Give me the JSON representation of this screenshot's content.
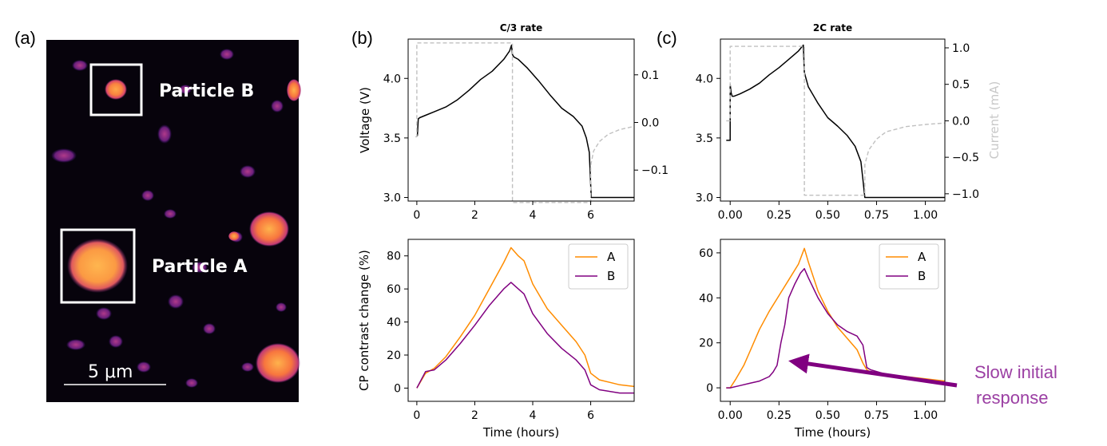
{
  "figure": {
    "panel_labels": [
      "(a)",
      "(b)",
      "(c)"
    ],
    "image": {
      "particle_a_label": "Particle A",
      "particle_b_label": "Particle B",
      "scalebar_label": "5 μm",
      "colormap": [
        "#000004",
        "#3b0f70",
        "#8c2981",
        "#de4968",
        "#fe9f6d",
        "#fcfdbf"
      ]
    },
    "annotation": {
      "text": "Slow initial\nresponse",
      "color": "#9b3fa3"
    }
  },
  "chart_data": [
    {
      "id": "b_top",
      "type": "line",
      "title": "C/3 rate",
      "xlabel": "",
      "ylabel": "Voltage (V)",
      "xlim": [
        -0.3,
        7.5
      ],
      "ylim": [
        2.97,
        4.33
      ],
      "xticks": [
        0,
        2,
        4,
        6
      ],
      "yticks": [
        3.0,
        3.5,
        4.0
      ],
      "y2lim": [
        -0.165,
        0.175
      ],
      "y2ticks": [
        -0.1,
        0.0,
        0.1
      ],
      "y2label": "",
      "series": [
        {
          "color": "#000000",
          "dash": false,
          "axis": "left",
          "x": [
            0,
            0.02,
            0.05,
            0.1,
            0.3,
            0.6,
            1.0,
            1.4,
            1.8,
            2.2,
            2.6,
            3.0,
            3.2,
            3.27,
            3.3,
            3.35,
            3.5,
            3.8,
            4.2,
            4.6,
            5.0,
            5.4,
            5.7,
            5.85,
            5.95,
            6.0,
            6.02,
            6.05,
            6.3,
            7.0,
            7.5
          ],
          "y": [
            3.52,
            3.52,
            3.66,
            3.67,
            3.69,
            3.72,
            3.76,
            3.82,
            3.9,
            3.99,
            4.06,
            4.16,
            4.23,
            4.28,
            4.2,
            4.18,
            4.16,
            4.09,
            3.98,
            3.86,
            3.75,
            3.68,
            3.6,
            3.5,
            3.38,
            3.1,
            3.0,
            3.0,
            3.0,
            3.0,
            3.0
          ]
        },
        {
          "color": "#c0c0c0",
          "dash": true,
          "axis": "right",
          "x": [
            -0.05,
            0,
            0,
            0.05,
            3.3,
            3.3,
            6.0,
            6.0,
            6.1,
            6.3,
            6.6,
            7.0,
            7.5
          ],
          "y": [
            -0.03,
            -0.03,
            0.167,
            0.167,
            0.167,
            -0.168,
            -0.168,
            -0.09,
            -0.06,
            -0.04,
            -0.025,
            -0.015,
            -0.008
          ]
        }
      ]
    },
    {
      "id": "c_top",
      "type": "line",
      "title": "2C rate",
      "xlabel": "",
      "ylabel": "",
      "xlim": [
        -0.05,
        1.1
      ],
      "ylim": [
        2.97,
        4.33
      ],
      "xticks": [
        0.0,
        0.25,
        0.5,
        0.75,
        1.0
      ],
      "xticklabels": [
        "0.00",
        "0.25",
        "0.50",
        "0.75",
        "1.00"
      ],
      "yticks": [
        3.0,
        3.5,
        4.0
      ],
      "y2lim": [
        -1.1,
        1.12
      ],
      "y2ticks": [
        -1.0,
        -0.5,
        0.0,
        0.5,
        1.0
      ],
      "y2ticklabels": [
        "−1.0",
        "−0.5",
        "0.0",
        "0.5",
        "1.0"
      ],
      "y2label": "Current (mA)",
      "series": [
        {
          "color": "#000000",
          "dash": false,
          "axis": "left",
          "x": [
            -0.02,
            0.0,
            0.0,
            0.005,
            0.01,
            0.02,
            0.05,
            0.1,
            0.15,
            0.2,
            0.25,
            0.3,
            0.35,
            0.375,
            0.38,
            0.385,
            0.4,
            0.45,
            0.5,
            0.55,
            0.6,
            0.64,
            0.67,
            0.68,
            0.69,
            0.7,
            0.8,
            0.9,
            1.0,
            1.1
          ],
          "y": [
            3.48,
            3.48,
            3.95,
            3.88,
            3.85,
            3.85,
            3.87,
            3.91,
            3.96,
            4.03,
            4.09,
            4.16,
            4.23,
            4.28,
            4.05,
            4.02,
            3.93,
            3.79,
            3.67,
            3.6,
            3.52,
            3.43,
            3.3,
            3.15,
            3.0,
            3.0,
            3.0,
            3.0,
            3.0,
            3.0
          ]
        },
        {
          "color": "#c0c0c0",
          "dash": true,
          "axis": "right",
          "x": [
            -0.02,
            0.0,
            0.0,
            0.38,
            0.38,
            0.69,
            0.69,
            0.71,
            0.75,
            0.8,
            0.9,
            1.0,
            1.1
          ],
          "y": [
            0.0,
            0.0,
            1.02,
            1.02,
            -1.02,
            -1.02,
            -0.6,
            -0.4,
            -0.25,
            -0.15,
            -0.08,
            -0.05,
            -0.03
          ]
        }
      ]
    },
    {
      "id": "b_bottom",
      "type": "line",
      "title": "",
      "xlabel": "Time (hours)",
      "ylabel": "CP contrast change (%)",
      "xlim": [
        -0.3,
        7.5
      ],
      "ylim": [
        -8,
        90
      ],
      "xticks": [
        0,
        2,
        4,
        6
      ],
      "yticks": [
        0,
        20,
        40,
        60,
        80
      ],
      "legend": {
        "position": "top-right",
        "entries": [
          "A",
          "B"
        ]
      },
      "series": [
        {
          "name": "A",
          "color": "#ff8c00",
          "dash": false,
          "x": [
            0,
            0.3,
            0.6,
            1.0,
            1.5,
            2.0,
            2.5,
            3.0,
            3.25,
            3.5,
            3.7,
            4.0,
            4.5,
            5.0,
            5.5,
            5.8,
            6.0,
            6.3,
            7.0,
            7.5
          ],
          "y": [
            0,
            9,
            12,
            19,
            31,
            44,
            60,
            76,
            85,
            80,
            77,
            63,
            48,
            38,
            28,
            20,
            9,
            5,
            2,
            1
          ]
        },
        {
          "name": "B",
          "color": "#800080",
          "dash": false,
          "x": [
            0,
            0.3,
            0.6,
            1.0,
            1.5,
            2.0,
            2.5,
            3.0,
            3.25,
            3.5,
            3.7,
            4.0,
            4.5,
            5.0,
            5.5,
            5.8,
            6.0,
            6.3,
            7.0,
            7.5
          ],
          "y": [
            0,
            10,
            11,
            17,
            27,
            38,
            50,
            60,
            64,
            60,
            57,
            45,
            33,
            24,
            17,
            11,
            2,
            -1,
            -3,
            -3
          ]
        }
      ]
    },
    {
      "id": "c_bottom",
      "type": "line",
      "title": "",
      "xlabel": "Time (hours)",
      "ylabel": "",
      "xlim": [
        -0.05,
        1.1
      ],
      "ylim": [
        -6,
        66
      ],
      "xticks": [
        0.0,
        0.25,
        0.5,
        0.75,
        1.0
      ],
      "xticklabels": [
        "0.00",
        "0.25",
        "0.50",
        "0.75",
        "1.00"
      ],
      "yticks": [
        0,
        20,
        40,
        60
      ],
      "legend": {
        "position": "top-right",
        "entries": [
          "A",
          "B"
        ]
      },
      "series": [
        {
          "name": "A",
          "color": "#ff8c00",
          "dash": false,
          "x": [
            -0.02,
            0.0,
            0.03,
            0.07,
            0.1,
            0.15,
            0.2,
            0.25,
            0.3,
            0.35,
            0.38,
            0.4,
            0.45,
            0.5,
            0.55,
            0.6,
            0.65,
            0.68,
            0.7,
            0.72,
            0.8,
            0.9,
            1.0,
            1.1
          ],
          "y": [
            0,
            0,
            4,
            10,
            16,
            26,
            34,
            41,
            48,
            55,
            62,
            56,
            43,
            34,
            27,
            22,
            17,
            11,
            8,
            7,
            6,
            5,
            4,
            3
          ]
        },
        {
          "name": "B",
          "color": "#800080",
          "dash": false,
          "x": [
            -0.02,
            0.0,
            0.05,
            0.1,
            0.15,
            0.2,
            0.22,
            0.24,
            0.26,
            0.28,
            0.3,
            0.33,
            0.36,
            0.38,
            0.4,
            0.45,
            0.5,
            0.55,
            0.6,
            0.65,
            0.68,
            0.7,
            0.72,
            0.8,
            0.9,
            1.0,
            1.1
          ],
          "y": [
            0,
            0,
            1,
            2,
            3,
            5,
            7,
            10,
            20,
            28,
            40,
            46,
            51,
            53,
            49,
            40,
            33,
            28,
            25,
            23,
            19,
            9,
            8,
            6,
            4,
            3,
            2
          ]
        }
      ]
    }
  ]
}
